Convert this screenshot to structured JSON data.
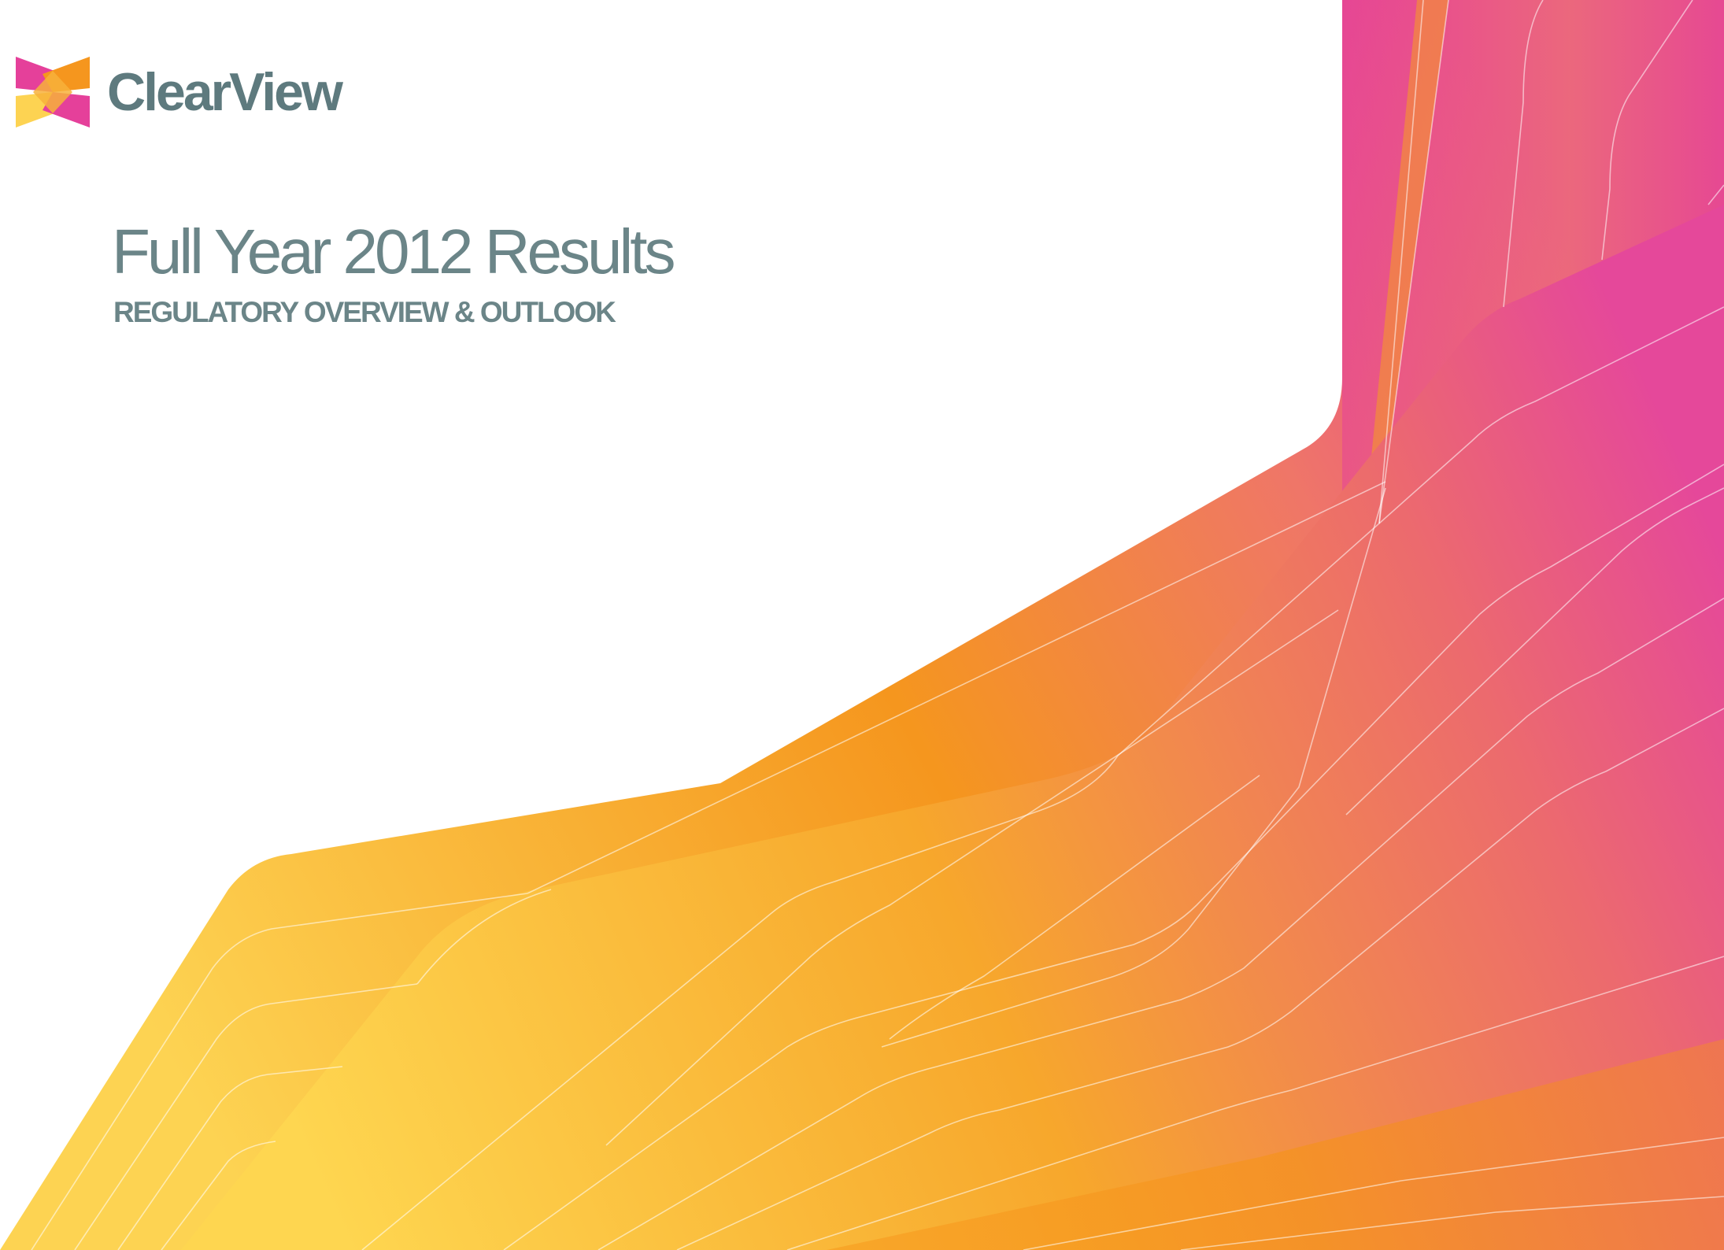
{
  "logo": {
    "wordmark": "ClearView",
    "icon": "clearview-bowtie-icon"
  },
  "title": "Full Year 2012 Results",
  "subtitle": "REGULATORY OVERVIEW & OUTLOOK",
  "colors": {
    "text": "#6b8588",
    "wordmark": "#5e7a7e",
    "pink": "#e5409a",
    "orange": "#f5961e",
    "yellow": "#fdd352",
    "background": "#ffffff"
  }
}
